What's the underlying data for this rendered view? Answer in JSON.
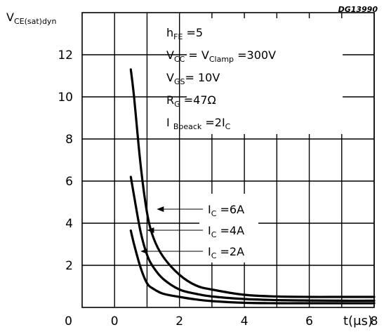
{
  "chart_data": {
    "type": "line",
    "figure_code": "DG13990",
    "xlim": [
      -1,
      8
    ],
    "ylim": [
      0,
      14
    ],
    "x_ticks": [
      0,
      2,
      4,
      6,
      8
    ],
    "y_ticks": [
      2,
      4,
      6,
      8,
      10,
      12
    ],
    "ylabel": {
      "main": "V",
      "sub": "CE(sat)dyn"
    },
    "xlabel": "t(μs)",
    "grid": true,
    "conditions": [
      {
        "main": "h",
        "sub": "FE",
        "rest": " =5"
      },
      {
        "main": "V",
        "sub": "CC",
        "mid": " = V",
        "sub2": "Clamp",
        "rest": " =300V"
      },
      {
        "main": "V",
        "sub": "GS",
        "rest": "= 10V"
      },
      {
        "main": "R",
        "sub": "G",
        "rest": " =47Ω"
      },
      {
        "main": "I ",
        "sub": "Bpeack",
        "rest": " =2I",
        "sub2": "C"
      }
    ],
    "series": [
      {
        "name": "I C =6A",
        "x": [
          0.5,
          0.6,
          0.8,
          1.0,
          1.2,
          1.5,
          2.0,
          2.5,
          3.0,
          4.0,
          5.0,
          6.0,
          7.0,
          8.0
        ],
        "y": [
          11.3,
          10.0,
          6.8,
          4.5,
          3.3,
          2.4,
          1.55,
          1.05,
          0.85,
          0.6,
          0.52,
          0.5,
          0.5,
          0.5
        ]
      },
      {
        "name": "I C =4A",
        "x": [
          0.5,
          0.6,
          0.8,
          1.0,
          1.2,
          1.5,
          2.0,
          2.5,
          3.0,
          4.0,
          5.0,
          6.0,
          7.0,
          8.0
        ],
        "y": [
          6.2,
          5.3,
          3.6,
          2.5,
          1.9,
          1.35,
          0.85,
          0.65,
          0.52,
          0.4,
          0.35,
          0.33,
          0.32,
          0.32
        ]
      },
      {
        "name": "I C =2A",
        "x": [
          0.5,
          0.6,
          0.8,
          1.0,
          1.2,
          1.5,
          2.0,
          2.5,
          3.0,
          4.0,
          5.0,
          6.0,
          7.0,
          8.0
        ],
        "y": [
          3.65,
          3.0,
          1.9,
          1.15,
          0.88,
          0.65,
          0.5,
          0.38,
          0.3,
          0.22,
          0.2,
          0.2,
          0.2,
          0.2
        ]
      }
    ],
    "legend_labels": [
      {
        "main": "I",
        "sub": "C",
        "rest": " =6A"
      },
      {
        "main": "I",
        "sub": "C",
        "rest": " =4A"
      },
      {
        "main": "I",
        "sub": "C",
        "rest": " =2A"
      }
    ],
    "legend_arrow_targets": [
      {
        "x": 1.3,
        "y": 4.75
      },
      {
        "x": 1.0,
        "y": 3.7
      },
      {
        "x": 0.8,
        "y": 2.6
      }
    ]
  }
}
